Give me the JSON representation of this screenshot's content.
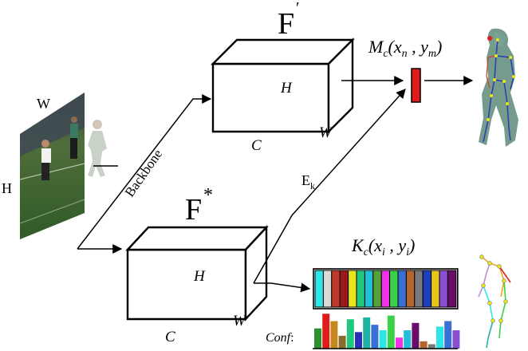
{
  "input": {
    "width_label": "W",
    "height_label": "H"
  },
  "backbone": {
    "label": "Backbone"
  },
  "feature_top": {
    "name": "F",
    "prime": "′",
    "height_label": "H",
    "width_label": "W",
    "channel_label": "C"
  },
  "feature_bottom": {
    "name": "F",
    "star": "*",
    "height_label": "H",
    "width_label": "W",
    "channel_label": "C"
  },
  "embedding": {
    "label": "E",
    "sub": "k"
  },
  "mesh_output": {
    "label": "M",
    "sub": "c",
    "args": "(x",
    "arg_sub1": "n",
    "mid": " , y",
    "arg_sub2": "m",
    "close": ")"
  },
  "keypoint_output": {
    "label": "K",
    "sub": "c",
    "args": "(x",
    "arg_sub1": "i",
    "mid": " , y",
    "arg_sub2": "i",
    "close": ")"
  },
  "confidence": {
    "label": "Conf",
    "colon": ":"
  },
  "colors": {
    "keypoint_vector": [
      "#2ee6e6",
      "#d9d9d9",
      "#c0392b",
      "#9b1b1b",
      "#e8e51c",
      "#1fc77f",
      "#21c0d6",
      "#57a33a",
      "#f032e6",
      "#3cd14a",
      "#3a6fd8",
      "#b5652c",
      "#7a7a7a",
      "#1e3fbd",
      "#e6c51c",
      "#8a4fd1",
      "#6a0d6a"
    ],
    "mesh_token": "#e01b1b"
  },
  "chart_data": {
    "type": "bar",
    "series": [
      {
        "values": [
          0.55,
          0.95,
          0.75,
          0.35,
          0.8,
          0.45,
          0.85,
          0.65,
          0.5,
          0.9,
          0.3,
          0.5,
          0.7,
          0.2,
          0.12,
          0.6,
          0.75,
          0.5
        ],
        "colors": [
          "#2f8f2f",
          "#e01b1b",
          "#c48a1c",
          "#8a6b2a",
          "#1fc77f",
          "#2a2fb5",
          "#1fb3a3",
          "#3a6fd8",
          "#2ee6e6",
          "#3cd14a",
          "#f032e6",
          "#21c0d6",
          "#6a0d6a",
          "#b5652c",
          "#7a7a7a",
          "#2ee6e6",
          "#3a6fd8",
          "#8a4fd1"
        ]
      }
    ]
  }
}
